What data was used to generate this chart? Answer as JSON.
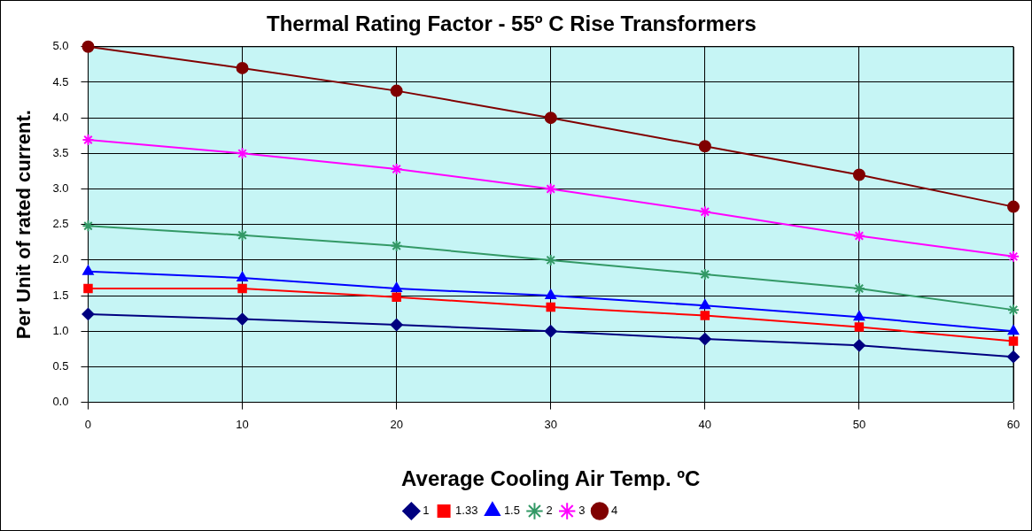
{
  "chart_data": {
    "type": "line",
    "title": "Thermal Rating Factor - 55º C Rise Transformers",
    "xlabel": "Average Cooling Air Temp. ºC",
    "ylabel": "Per Unit of rated current.",
    "x": [
      0,
      10,
      20,
      30,
      40,
      50,
      60
    ],
    "xlim": [
      0,
      60
    ],
    "xticks": [
      0,
      10,
      20,
      30,
      40,
      50,
      60
    ],
    "ylim": [
      0,
      5
    ],
    "yticks": [
      {
        "value": 0,
        "label": "0.0"
      },
      0.5,
      {
        "value": 1,
        "label": "1.0"
      },
      1.5,
      {
        "value": 2,
        "label": "2.0"
      },
      2.5,
      {
        "value": 3,
        "label": "3.0"
      },
      3.5,
      {
        "value": 4,
        "label": "4.0"
      },
      4.5,
      {
        "value": 5,
        "label": "5.0"
      }
    ],
    "grid": true,
    "legend": "bottom",
    "line_style": "solid",
    "series": [
      {
        "name": "1",
        "color": "#000080",
        "marker": "diamond",
        "values": [
          1.24,
          1.17,
          1.09,
          1.0,
          0.89,
          0.8,
          0.64
        ]
      },
      {
        "name": "1.33",
        "color": "#ff0000",
        "marker": "square",
        "values": [
          1.6,
          1.6,
          1.48,
          1.34,
          1.22,
          1.06,
          0.86
        ]
      },
      {
        "name": "1.5",
        "color": "#0000ff",
        "marker": "triangle",
        "values": [
          1.84,
          1.75,
          1.6,
          1.5,
          1.36,
          1.2,
          1.0
        ]
      },
      {
        "name": "2",
        "color": "#339966",
        "marker": "cross",
        "values": [
          2.48,
          2.35,
          2.2,
          2.0,
          1.8,
          1.6,
          1.3
        ]
      },
      {
        "name": "3",
        "color": "#ff00ff",
        "marker": "cross",
        "values": [
          3.69,
          3.5,
          3.28,
          3.0,
          2.68,
          2.34,
          2.05
        ]
      },
      {
        "name": "4",
        "color": "#800000",
        "marker": "circle",
        "values": [
          5.0,
          4.7,
          4.38,
          4.0,
          3.6,
          3.2,
          2.75
        ]
      }
    ]
  }
}
